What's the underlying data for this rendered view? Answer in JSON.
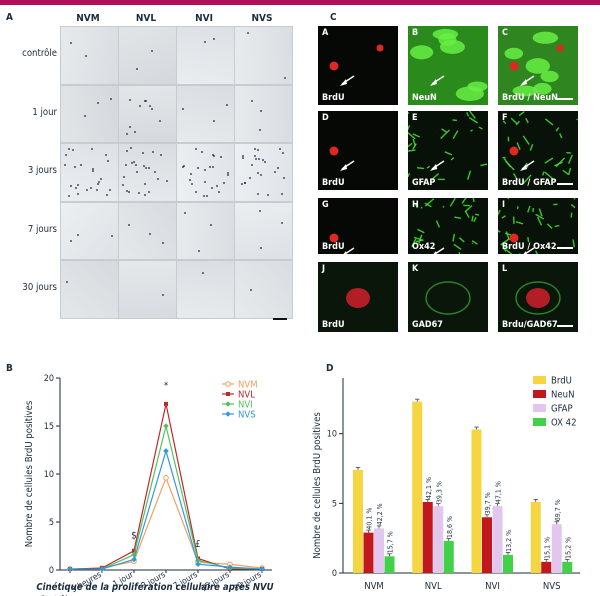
{
  "panels": {
    "A": {
      "letter": "A",
      "columns": [
        "NVM",
        "NVL",
        "NVI",
        "NVS"
      ],
      "rows": [
        "contrôle",
        "1 jour",
        "3 jours",
        "7 jours",
        "30 jours"
      ]
    },
    "C": {
      "letter": "C",
      "tiles": [
        {
          "letter": "A",
          "label": "BrdU"
        },
        {
          "letter": "B",
          "label": "NeuN"
        },
        {
          "letter": "C",
          "label": "BrdU / NeuN"
        },
        {
          "letter": "D",
          "label": "BrdU"
        },
        {
          "letter": "E",
          "label": "GFAP"
        },
        {
          "letter": "F",
          "label": "BrdU / GFAP"
        },
        {
          "letter": "G",
          "label": "BrdU"
        },
        {
          "letter": "H",
          "label": "Ox42"
        },
        {
          "letter": "I",
          "label": "BrdU / Ox42"
        },
        {
          "letter": "J",
          "label": "BrdU"
        },
        {
          "letter": "K",
          "label": "GAD67"
        },
        {
          "letter": "L",
          "label": "Brdu/GAD67"
        }
      ]
    },
    "B": {
      "letter": "B"
    },
    "D": {
      "letter": "D"
    }
  },
  "chart_data": [
    {
      "type": "line",
      "panel": "B",
      "xlabel": "Cinétique de la prolifération cellulaire après NVU",
      "ylabel": "Nombre de cellules BrdU positives",
      "categories": [
        "Contrôles",
        "3 heures",
        "1 jour",
        "3 jours",
        "7 jours",
        "15 jours",
        "30 jours"
      ],
      "ylim": [
        0,
        20
      ],
      "yticks": [
        0,
        5,
        10,
        15,
        20
      ],
      "series": [
        {
          "name": "NVM",
          "color": "#f4a060",
          "values": [
            0.1,
            0.2,
            0.9,
            9.6,
            0.8,
            0.6,
            0.2
          ]
        },
        {
          "name": "NVL",
          "color": "#c0282a",
          "values": [
            0.1,
            0.2,
            2.0,
            17.3,
            1.2,
            0.1,
            0.1
          ]
        },
        {
          "name": "NVI",
          "color": "#55c060",
          "values": [
            0.1,
            0.1,
            1.6,
            15.0,
            1.0,
            0.2,
            0.1
          ]
        },
        {
          "name": "NVS",
          "color": "#3399dd",
          "values": [
            0.1,
            0.1,
            1.1,
            12.4,
            0.6,
            0.3,
            0.1
          ]
        }
      ],
      "annotations": [
        {
          "text": "$",
          "x": "1 jour",
          "y": 3.3
        },
        {
          "text": "*",
          "x": "3 jours",
          "y": 18.9
        },
        {
          "text": "£",
          "x": "7 jours",
          "y": 2.4
        }
      ]
    },
    {
      "type": "bar",
      "panel": "D",
      "ylabel": "Nombre de cellules BrdU positives",
      "categories": [
        "NVM",
        "NVL",
        "NVI",
        "NVS"
      ],
      "ylim": [
        0,
        14
      ],
      "yticks": [
        0,
        5,
        10
      ],
      "series": [
        {
          "name": "BrdU",
          "color": "#f5d542",
          "values": [
            7.4,
            12.3,
            10.3,
            5.1
          ],
          "labels": [
            "",
            "",
            "",
            ""
          ]
        },
        {
          "name": "NeuN",
          "color": "#c0181c",
          "values": [
            2.9,
            5.1,
            4.0,
            0.8
          ],
          "labels": [
            "40,1 %",
            "42,1 %",
            "39,7 %",
            "15,1 %"
          ]
        },
        {
          "name": "GFAP",
          "color": "#e2c6ee",
          "values": [
            3.2,
            4.8,
            4.8,
            3.5
          ],
          "labels": [
            "42,2 %",
            "39,3 %",
            "47,1 %",
            "69,7 %"
          ]
        },
        {
          "name": "OX 42",
          "color": "#44d14a",
          "values": [
            1.2,
            2.3,
            1.3,
            0.8
          ],
          "labels": [
            "15,7 %",
            "18,6 %",
            "13,2 %",
            "15,2 %"
          ]
        }
      ]
    }
  ]
}
